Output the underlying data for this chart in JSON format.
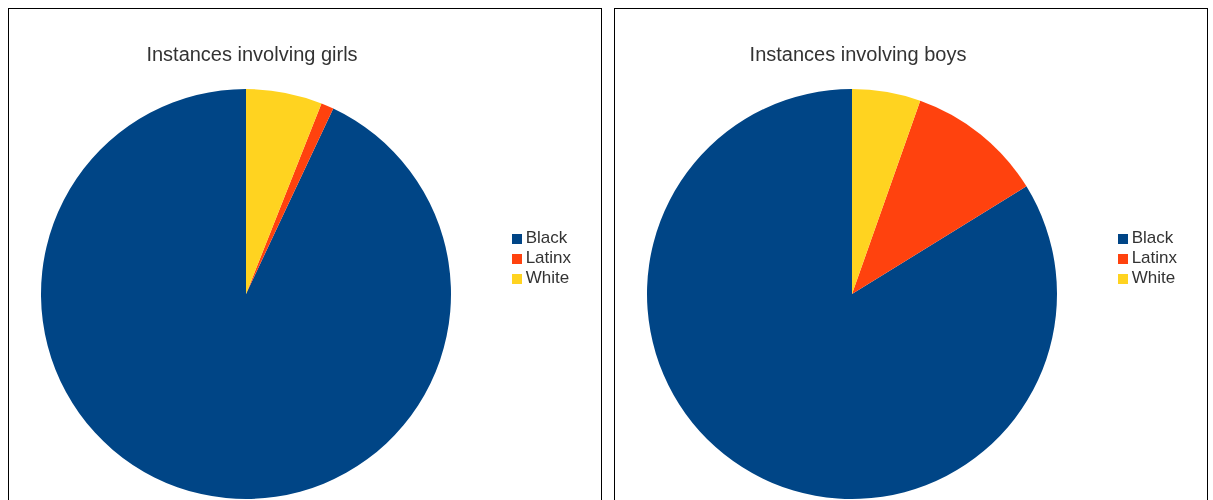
{
  "chart_data": [
    {
      "type": "pie",
      "title": "Instances involving girls",
      "categories": [
        "Black",
        "Latinx",
        "White"
      ],
      "values": [
        93,
        1,
        6
      ],
      "colors": [
        "#004586",
        "#ff420e",
        "#ffd320"
      ],
      "legend": "right"
    },
    {
      "type": "pie",
      "title": "Instances involving boys",
      "categories": [
        "Black",
        "Latinx",
        "White"
      ],
      "values": [
        83.8,
        10.8,
        5.4
      ],
      "colors": [
        "#004586",
        "#ff420e",
        "#ffd320"
      ],
      "legend": "right"
    }
  ]
}
